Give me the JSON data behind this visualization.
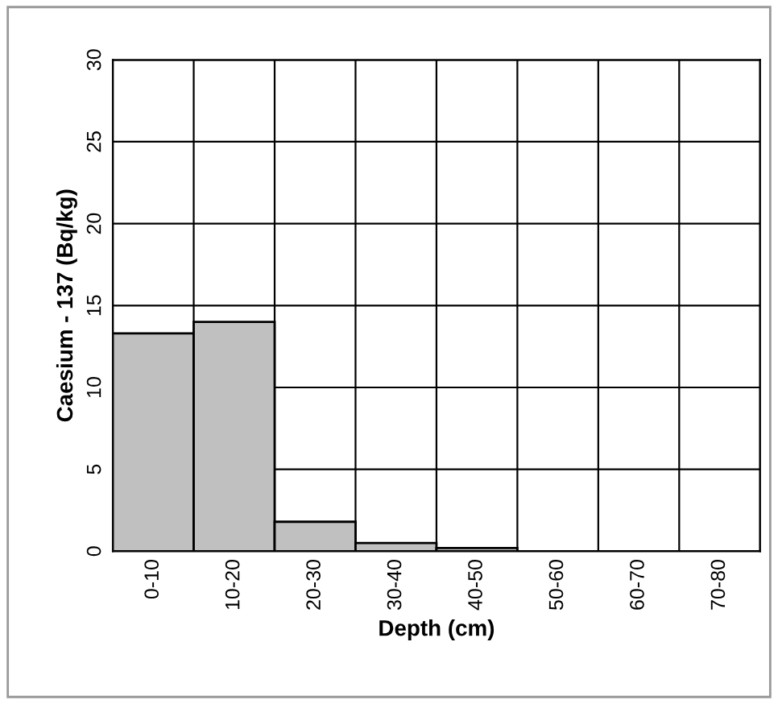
{
  "chart_data": {
    "type": "bar",
    "xlabel": "Depth (cm)",
    "ylabel": "Caesium - 137 (Bq/kg)",
    "categories": [
      "0-10",
      "10-20",
      "20-30",
      "30-40",
      "40-50",
      "50-60",
      "60-70",
      "70-80"
    ],
    "values": [
      13.3,
      14.0,
      1.8,
      0.5,
      0.2,
      0,
      0,
      0
    ],
    "color": "#c0c0c0",
    "ylim": [
      0,
      30
    ],
    "yticks": [
      0,
      5,
      10,
      15,
      20,
      25,
      30
    ],
    "grid": true
  }
}
